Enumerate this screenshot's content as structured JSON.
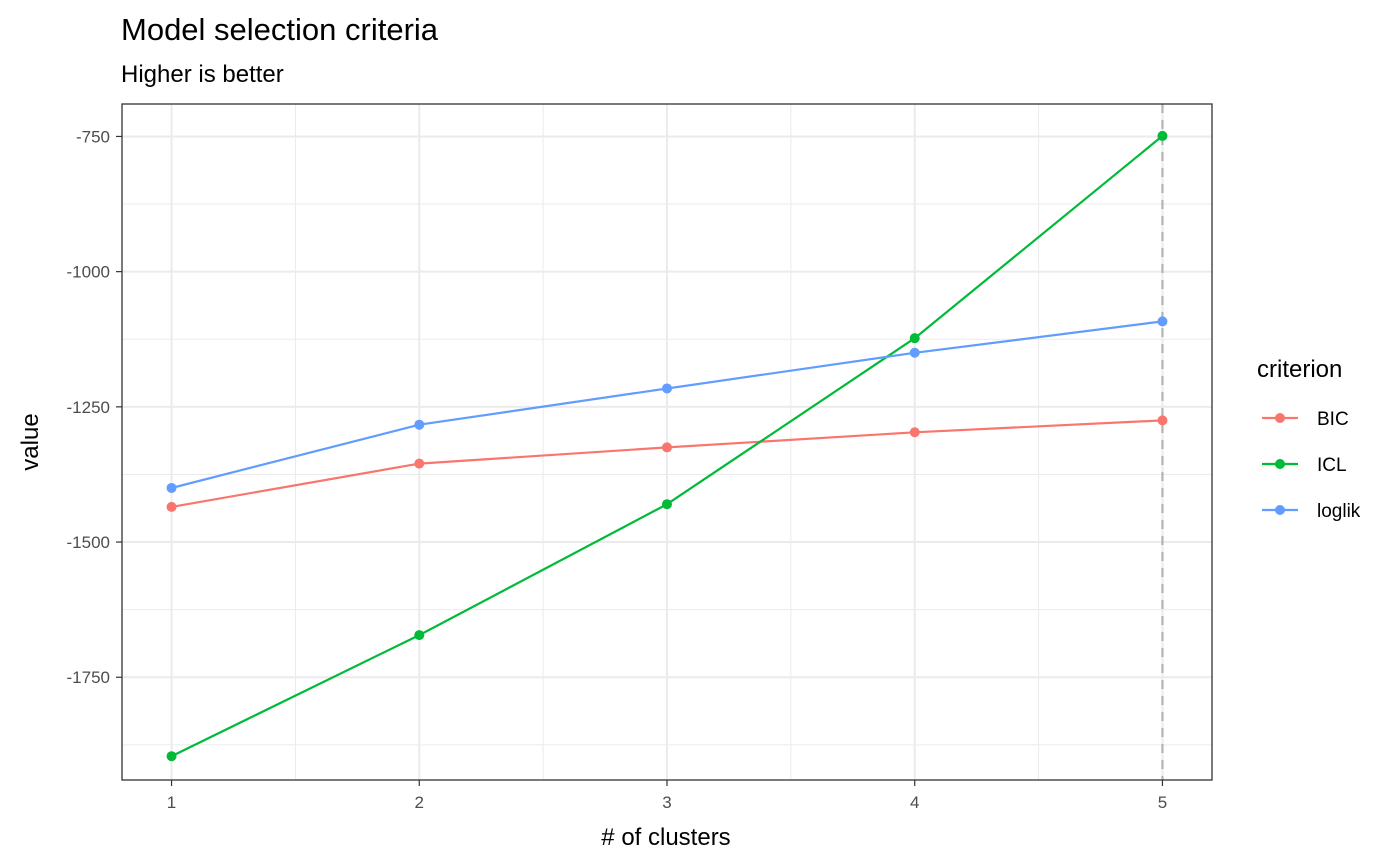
{
  "chart_data": {
    "type": "line",
    "title": "Model selection criteria",
    "subtitle": "Higher is better",
    "xlabel": "# of clusters",
    "ylabel": "value",
    "x": [
      1,
      2,
      3,
      4,
      5
    ],
    "x_ticks": [
      "1",
      "2",
      "3",
      "4",
      "5"
    ],
    "y_ticks": [
      -750,
      -1000,
      -1250,
      -1500,
      -1750
    ],
    "y_tick_labels": [
      "-750",
      "-1000",
      "-1250",
      "-1500",
      "-1750"
    ],
    "xlim": [
      0.8,
      5.2
    ],
    "ylim": [
      -1940,
      -690
    ],
    "grid": true,
    "reference_line": {
      "x": 5,
      "style": "dashed"
    },
    "legend": {
      "title": "criterion",
      "position": "right"
    },
    "series": [
      {
        "name": "BIC",
        "color": "#F8766D",
        "values": [
          -1435,
          -1355,
          -1325,
          -1297,
          -1275
        ]
      },
      {
        "name": "ICL",
        "color": "#00BA38",
        "values": [
          -1896,
          -1672,
          -1430,
          -1123,
          -749
        ]
      },
      {
        "name": "loglik",
        "color": "#619CFF",
        "values": [
          -1400,
          -1283,
          -1216,
          -1150,
          -1092
        ]
      }
    ]
  }
}
